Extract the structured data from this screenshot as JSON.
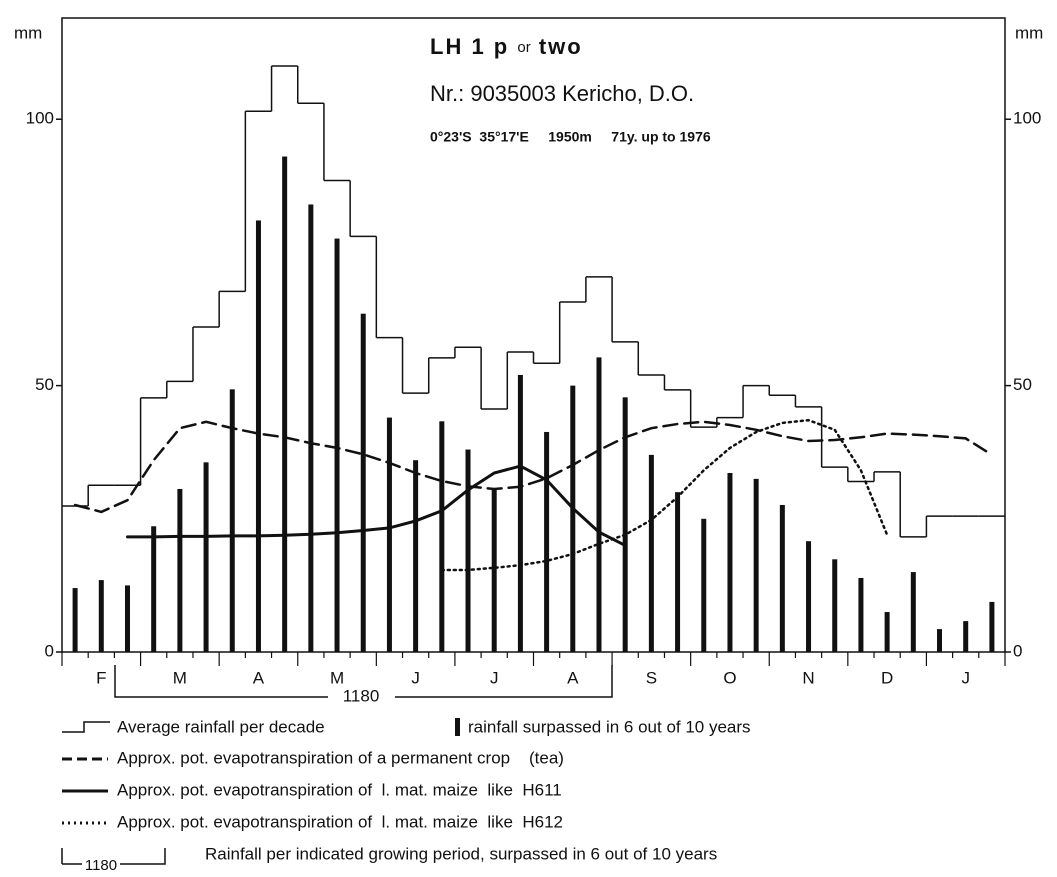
{
  "chart_data": {
    "type": "bar",
    "title_parts": [
      "LH 1 p",
      "or",
      "two"
    ],
    "subtitle": "Nr.: 9035003 Kericho, D.O.",
    "info": "0°23'S  35°17'E     1950m     71y. up to 1976",
    "y_label": "mm",
    "y2_label": "mm",
    "categories": [
      null,
      "F",
      null,
      null,
      "M",
      null,
      null,
      "A",
      null,
      null,
      "M",
      null,
      null,
      "J",
      null,
      null,
      "J",
      null,
      null,
      "A",
      null,
      null,
      "S",
      null,
      null,
      "O",
      null,
      null,
      "N",
      null,
      null,
      "D",
      null,
      null,
      "J",
      null
    ],
    "ylim": [
      0,
      119
    ],
    "yticks": [
      0,
      50,
      100
    ],
    "y2lim": [
      0,
      119
    ],
    "y2ticks": [
      0,
      50,
      100
    ],
    "period_label": "1180",
    "period_legend_label": "1180",
    "period_legend_text": "Rainfall per indicated growing period, surpassed in 6 out of 10 years",
    "series": [
      {
        "name": "Average rainfall per decade",
        "type": "step",
        "color": "#111",
        "values": [
          27.4,
          31.3,
          31.3,
          47.7,
          50.8,
          61,
          67.7,
          101.5,
          110,
          103,
          88.5,
          78,
          59,
          48.6,
          55.2,
          57.2,
          45.6,
          56.3,
          54.2,
          65.7,
          70.4,
          58.2,
          52,
          49.2,
          42.2,
          44,
          50,
          48.2,
          46,
          34.7,
          32,
          33.8,
          21.6,
          25.5,
          25.5,
          25.5
        ]
      },
      {
        "name": "rainfall surpassed in 6 out of 10 years",
        "type": "bar",
        "color": "#111",
        "values": [
          12,
          13.5,
          12.5,
          23.6,
          30.6,
          35.6,
          49.3,
          81,
          93,
          84,
          77.6,
          63.5,
          44,
          36,
          43.3,
          38,
          30.6,
          52,
          41.3,
          50,
          55.3,
          47.8,
          37,
          30,
          25,
          33.6,
          32.5,
          27.6,
          20.8,
          17.4,
          13.9,
          7.5,
          15,
          4.3,
          5.8,
          9.4
        ]
      },
      {
        "name": "Approx. pot. evapotranspiration of a permanent crop    (tea)",
        "type": "line",
        "dash": "dashed",
        "color": "#111",
        "values": [
          27.6,
          26.3,
          28.5,
          36,
          42,
          43.2,
          42,
          41,
          40.3,
          39.2,
          38.3,
          37.1,
          35.5,
          33.6,
          32.1,
          31.1,
          30.6,
          31,
          32.6,
          35.1,
          37.9,
          40.3,
          42,
          42.8,
          43.2,
          42.6,
          41.7,
          40.5,
          39.6,
          39.8,
          40.3,
          41,
          40.8,
          40.5,
          40.1,
          37
        ]
      },
      {
        "name": "Approx. pot. evapotranspiration of  l. mat. maize  like  H611",
        "type": "line",
        "dash": "solid",
        "color": "#111",
        "values": [
          null,
          null,
          21.6,
          21.6,
          21.7,
          21.7,
          21.8,
          21.8,
          21.9,
          22.1,
          22.4,
          22.8,
          23.3,
          24.6,
          26.5,
          30.4,
          33.6,
          34.9,
          32.3,
          27,
          22.5,
          20,
          null,
          null,
          null,
          null,
          null,
          null,
          null,
          null,
          null,
          null,
          null,
          null,
          null,
          null
        ]
      },
      {
        "name": "Approx. pot. evapotranspiration of  l. mat. maize  like  H612",
        "type": "line",
        "dash": "dotted",
        "color": "#111",
        "values": [
          null,
          null,
          null,
          null,
          null,
          null,
          null,
          null,
          null,
          null,
          null,
          null,
          null,
          null,
          15.4,
          15.4,
          15.8,
          16.3,
          17.1,
          18.4,
          20.3,
          22,
          24.8,
          29.1,
          34.1,
          38.3,
          41.3,
          43,
          43.5,
          41.7,
          34.1,
          22,
          null,
          null,
          null,
          null
        ]
      }
    ]
  }
}
